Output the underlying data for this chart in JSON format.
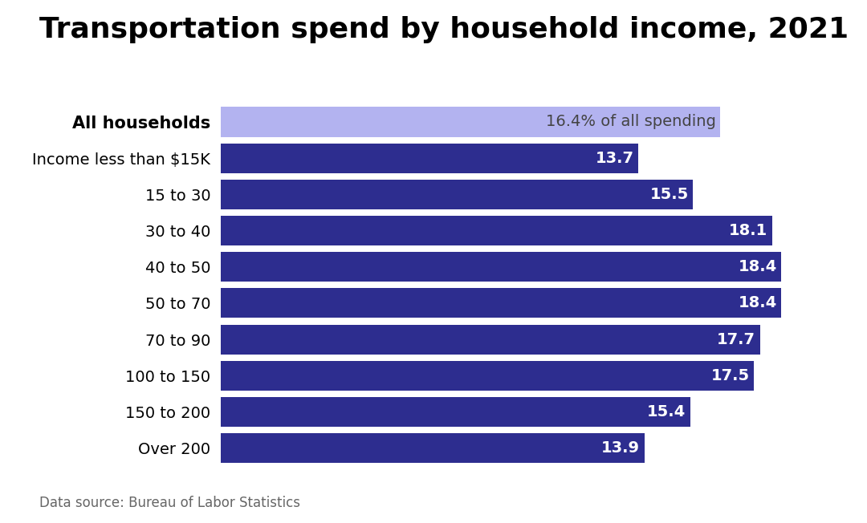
{
  "title": "Transportation spend by household income, 2021",
  "categories": [
    "All households",
    "Income less than $15K",
    "15 to 30",
    "30 to 40",
    "40 to 50",
    "50 to 70",
    "70 to 90",
    "100 to 150",
    "150 to 200",
    "Over 200"
  ],
  "values": [
    16.4,
    13.7,
    15.5,
    18.1,
    18.4,
    18.4,
    17.7,
    17.5,
    15.4,
    13.9
  ],
  "bar_colors": [
    "#b3b3f0",
    "#2d2d8f",
    "#2d2d8f",
    "#2d2d8f",
    "#2d2d8f",
    "#2d2d8f",
    "#2d2d8f",
    "#2d2d8f",
    "#2d2d8f",
    "#2d2d8f"
  ],
  "bar_labels": [
    "16.4% of all spending",
    "13.7",
    "15.5",
    "18.1",
    "18.4",
    "18.4",
    "17.7",
    "17.5",
    "15.4",
    "13.9"
  ],
  "label_colors": [
    "#444444",
    "#ffffff",
    "#ffffff",
    "#ffffff",
    "#ffffff",
    "#ffffff",
    "#ffffff",
    "#ffffff",
    "#ffffff",
    "#ffffff"
  ],
  "xmax": 20.5,
  "source_text": "Data source: Bureau of Labor Statistics",
  "title_fontsize": 26,
  "label_fontsize": 14,
  "category_fontsize": 14,
  "source_fontsize": 12,
  "background_color": "#ffffff"
}
